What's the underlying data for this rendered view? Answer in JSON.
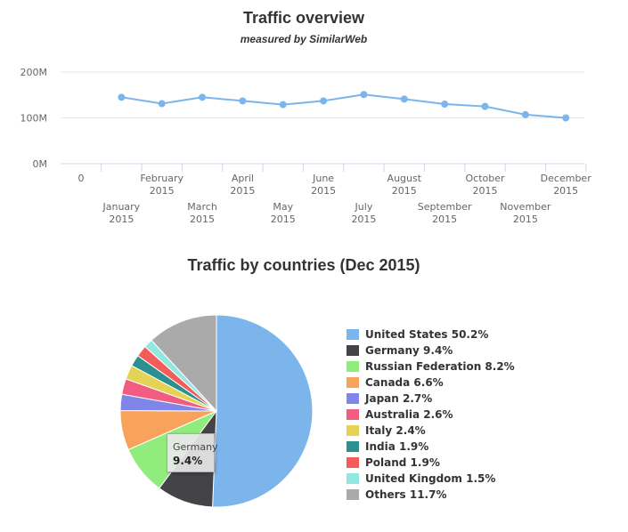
{
  "line_chart": {
    "title": "Traffic overview",
    "subtitle": "measured by SimilarWeb",
    "y_ticks": [
      "200M",
      "100M",
      "0M"
    ],
    "x_zero_label": "0"
  },
  "pie_chart": {
    "title": "Traffic by countries (Dec 2015)",
    "tooltip": {
      "name": "Germany",
      "value": "9.4%"
    }
  },
  "legend": [
    {
      "label": "United States 50.2%",
      "color": "#7cb5ec"
    },
    {
      "label": "Germany 9.4%",
      "color": "#434348"
    },
    {
      "label": "Russian Federation 8.2%",
      "color": "#90ed7d"
    },
    {
      "label": "Canada 6.6%",
      "color": "#f7a35c"
    },
    {
      "label": "Japan 2.7%",
      "color": "#8085e9"
    },
    {
      "label": "Australia 2.6%",
      "color": "#f15c80"
    },
    {
      "label": "Italy 2.4%",
      "color": "#e4d354"
    },
    {
      "label": "India 1.9%",
      "color": "#2b908f"
    },
    {
      "label": "Poland 1.9%",
      "color": "#f45b5b"
    },
    {
      "label": "United Kingdom 1.5%",
      "color": "#91e8e1"
    },
    {
      "label": "Others 11.7%",
      "color": "#aaaaaa"
    }
  ],
  "chart_data": [
    {
      "type": "line",
      "title": "Traffic overview",
      "subtitle": "measured by SimilarWeb",
      "categories": [
        [
          "January",
          "2015"
        ],
        [
          "February",
          "2015"
        ],
        [
          "March",
          "2015"
        ],
        [
          "April",
          "2015"
        ],
        [
          "May",
          "2015"
        ],
        [
          "June",
          "2015"
        ],
        [
          "July",
          "2015"
        ],
        [
          "August",
          "2015"
        ],
        [
          "September",
          "2015"
        ],
        [
          "October",
          "2015"
        ],
        [
          "November",
          "2015"
        ],
        [
          "December",
          "2015"
        ]
      ],
      "values": [
        145000000,
        131000000,
        145000000,
        137000000,
        129000000,
        137000000,
        151000000,
        141000000,
        130000000,
        125000000,
        107000000,
        100000000
      ],
      "ylim": [
        0,
        200000000
      ],
      "color": "#7cb5ec",
      "grid": true
    },
    {
      "type": "pie",
      "title": "Traffic by countries (Dec 2015)",
      "labels": [
        "United States",
        "Germany",
        "Russian Federation",
        "Canada",
        "Japan",
        "Australia",
        "Italy",
        "India",
        "Poland",
        "United Kingdom",
        "Others"
      ],
      "values": [
        50.2,
        9.4,
        8.2,
        6.6,
        2.7,
        2.6,
        2.4,
        1.9,
        1.9,
        1.5,
        11.7
      ],
      "colors": [
        "#7cb5ec",
        "#434348",
        "#90ed7d",
        "#f7a35c",
        "#8085e9",
        "#f15c80",
        "#e4d354",
        "#2b908f",
        "#f45b5b",
        "#91e8e1",
        "#aaaaaa"
      ],
      "legend": "right"
    }
  ]
}
